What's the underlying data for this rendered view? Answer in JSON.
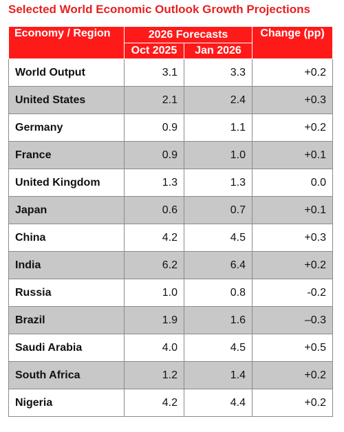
{
  "title": "Selected World Economic Outlook Growth Projections",
  "headers": {
    "economy": "Economy / Region",
    "forecasts": "2026 Forecasts",
    "change": "Change (pp)",
    "oct": "Oct 2025",
    "jan": "Jan 2026"
  },
  "rows": [
    {
      "name": "World Output",
      "oct": "3.1",
      "jan": "3.3",
      "change": "+0.2"
    },
    {
      "name": "United States",
      "oct": "2.1",
      "jan": "2.4",
      "change": "+0.3"
    },
    {
      "name": "Germany",
      "oct": "0.9",
      "jan": "1.1",
      "change": "+0.2"
    },
    {
      "name": "France",
      "oct": "0.9",
      "jan": "1.0",
      "change": "+0.1"
    },
    {
      "name": "United Kingdom",
      "oct": "1.3",
      "jan": "1.3",
      "change": "0.0"
    },
    {
      "name": "Japan",
      "oct": "0.6",
      "jan": "0.7",
      "change": "+0.1"
    },
    {
      "name": "China",
      "oct": "4.2",
      "jan": "4.5",
      "change": "+0.3"
    },
    {
      "name": "India",
      "oct": "6.2",
      "jan": "6.4",
      "change": "+0.2"
    },
    {
      "name": "Russia",
      "oct": "1.0",
      "jan": "0.8",
      "change": "-0.2"
    },
    {
      "name": "Brazil",
      "oct": "1.9",
      "jan": "1.6",
      "change": "–0.3"
    },
    {
      "name": "Saudi Arabia",
      "oct": "4.0",
      "jan": "4.5",
      "change": "+0.5"
    },
    {
      "name": "South Africa",
      "oct": "1.2",
      "jan": "1.4",
      "change": "+0.2"
    },
    {
      "name": "Nigeria",
      "oct": "4.2",
      "jan": "4.4",
      "change": "+0.2"
    }
  ],
  "colors": {
    "title": "#e8201f",
    "header_bg": "#ff1a1a",
    "shaded_row": "#c8c8c8"
  }
}
